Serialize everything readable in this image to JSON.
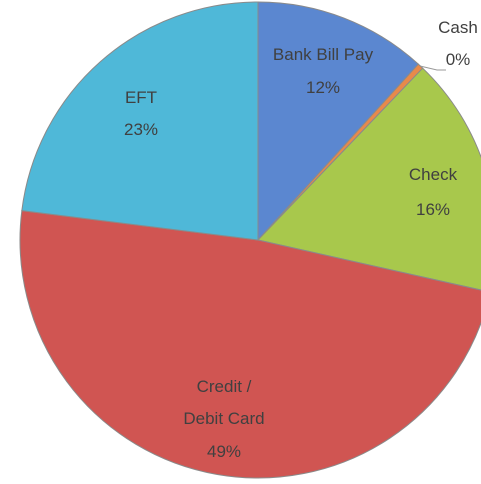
{
  "chart_data": {
    "type": "pie",
    "categories": [
      "Bank Bill Pay",
      "Cash",
      "Check",
      "Credit /\nDebit Card",
      "EFT"
    ],
    "values": [
      11.8,
      0.4,
      16.4,
      48.6,
      23.1
    ],
    "value_labels": [
      "12%",
      "0%",
      "16%",
      "49%",
      "23%"
    ],
    "colors": [
      "#5b87d0",
      "#e8894a",
      "#a8c84c",
      "#d05552",
      "#4fb8d8"
    ]
  }
}
